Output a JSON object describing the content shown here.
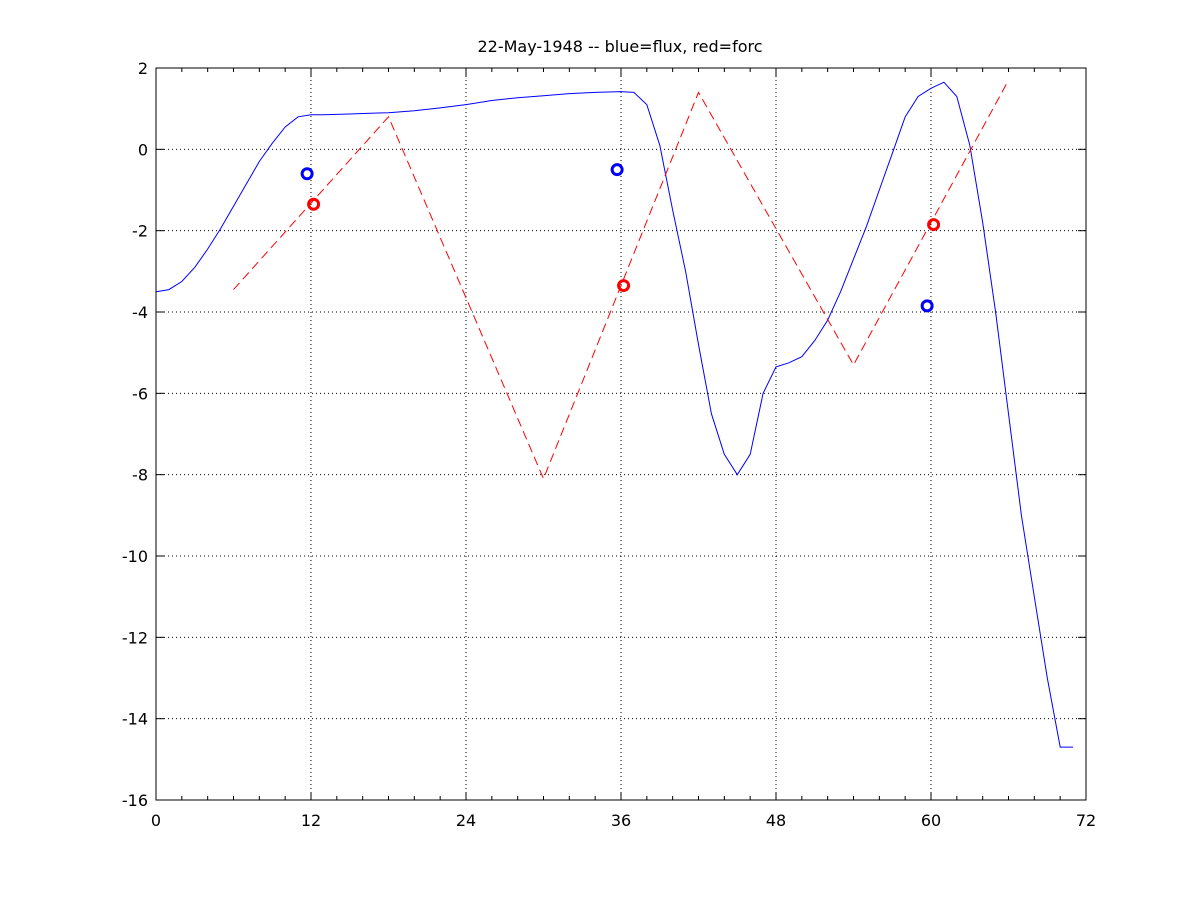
{
  "chart_data": {
    "type": "line",
    "title": "22-May-1948 -- blue=flux, red=forc",
    "xlabel": "",
    "ylabel": "",
    "xlim": [
      0,
      72
    ],
    "ylim": [
      -16,
      2
    ],
    "xticks": [
      0,
      12,
      24,
      36,
      48,
      60,
      72
    ],
    "yticks": [
      2,
      0,
      -2,
      -4,
      -6,
      -8,
      -10,
      -12,
      -14,
      -16
    ],
    "grid": true,
    "colors": {
      "flux": "#0000ff",
      "forc": "#ff0000"
    },
    "series": [
      {
        "name": "flux",
        "style": "solid",
        "color": "#0000ff",
        "x": [
          0,
          1,
          2,
          3,
          4,
          5,
          6,
          7,
          8,
          9,
          10,
          11,
          12,
          13,
          14,
          15,
          16,
          18,
          20,
          22,
          24,
          26,
          28,
          30,
          32,
          34,
          36,
          37,
          38,
          39,
          40,
          41,
          42,
          43,
          44,
          45,
          46,
          47,
          48,
          49,
          50,
          51,
          52,
          53,
          54,
          55,
          56,
          57,
          58,
          59,
          60,
          61,
          62,
          63,
          64,
          65,
          66,
          67,
          68,
          69,
          70,
          71
        ],
        "y": [
          -3.5,
          -3.45,
          -3.25,
          -2.9,
          -2.45,
          -1.95,
          -1.4,
          -0.85,
          -0.3,
          0.15,
          0.55,
          0.8,
          0.85,
          0.85,
          0.86,
          0.87,
          0.88,
          0.9,
          0.95,
          1.02,
          1.1,
          1.2,
          1.27,
          1.32,
          1.37,
          1.4,
          1.42,
          1.4,
          1.1,
          0.1,
          -1.5,
          -3.0,
          -4.8,
          -6.5,
          -7.5,
          -8.0,
          -7.5,
          -6.0,
          -5.35,
          -5.25,
          -5.1,
          -4.7,
          -4.2,
          -3.5,
          -2.7,
          -1.9,
          -1.0,
          -0.1,
          0.8,
          1.3,
          1.5,
          1.65,
          1.3,
          0.1,
          -1.8,
          -4.0,
          -6.5,
          -9.0,
          -11.0,
          -13.0,
          -14.7,
          -14.7
        ]
      },
      {
        "name": "forc",
        "style": "dashed",
        "color": "#ff0000",
        "x": [
          6,
          18,
          30,
          42,
          54,
          66
        ],
        "y": [
          -3.45,
          0.8,
          -8.1,
          1.4,
          -5.3,
          1.7
        ]
      }
    ],
    "markers": [
      {
        "series": "flux",
        "color": "#0000ff",
        "x": 11.7,
        "y": -0.6
      },
      {
        "series": "forc",
        "color": "#ff0000",
        "x": 12.2,
        "y": -1.35
      },
      {
        "series": "flux",
        "color": "#0000ff",
        "x": 35.7,
        "y": -0.5
      },
      {
        "series": "forc",
        "color": "#ff0000",
        "x": 36.2,
        "y": -3.35
      },
      {
        "series": "flux",
        "color": "#0000ff",
        "x": 59.7,
        "y": -3.85
      },
      {
        "series": "forc",
        "color": "#ff0000",
        "x": 60.2,
        "y": -1.85
      }
    ]
  }
}
